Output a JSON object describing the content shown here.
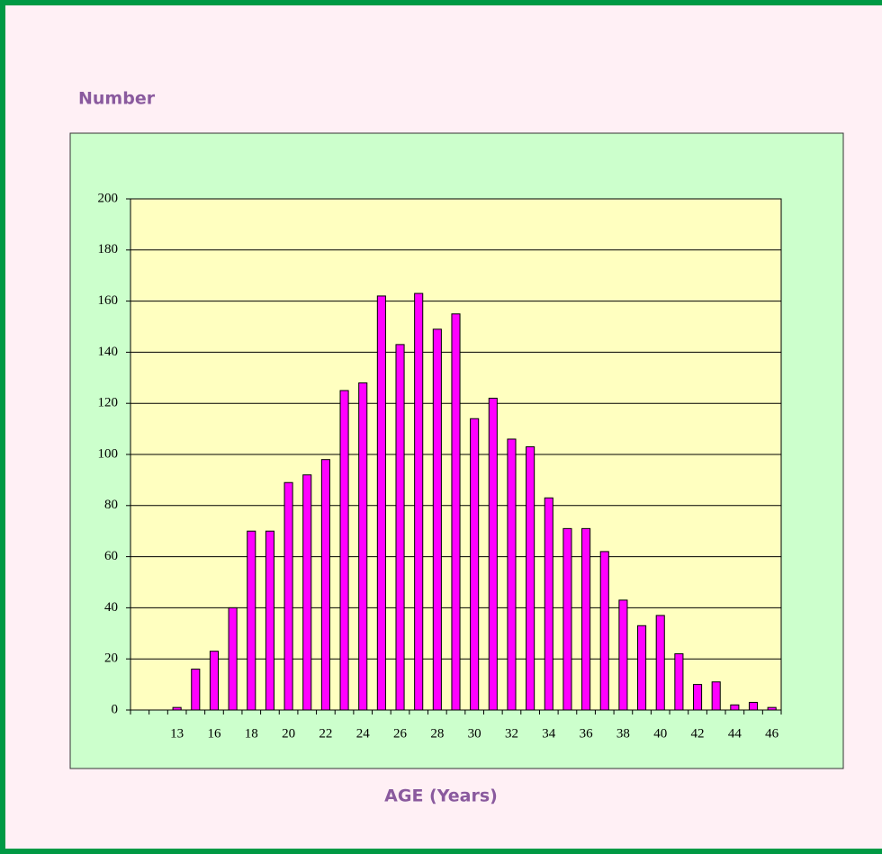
{
  "chart_data": {
    "type": "bar",
    "y_axis_label": "Number",
    "x_axis_label": "AGE (Years)",
    "categories": [
      null,
      null,
      "13",
      null,
      "16",
      null,
      "18",
      null,
      "20",
      null,
      "22",
      null,
      "24",
      null,
      "26",
      null,
      "28",
      null,
      "30",
      null,
      "32",
      null,
      "34",
      null,
      "36",
      null,
      "38",
      null,
      "40",
      null,
      "42",
      null,
      "44",
      null,
      "46"
    ],
    "values": [
      0,
      0,
      1,
      16,
      23,
      40,
      70,
      70,
      89,
      92,
      98,
      125,
      128,
      162,
      143,
      163,
      149,
      155,
      114,
      122,
      106,
      103,
      83,
      71,
      71,
      62,
      43,
      33,
      37,
      22,
      10,
      11,
      2,
      3,
      1
    ],
    "color": "#ff00ff",
    "ylim": [
      0,
      200
    ],
    "yticks": [
      0,
      20,
      40,
      60,
      80,
      100,
      120,
      140,
      160,
      180,
      200
    ],
    "grid": true
  }
}
